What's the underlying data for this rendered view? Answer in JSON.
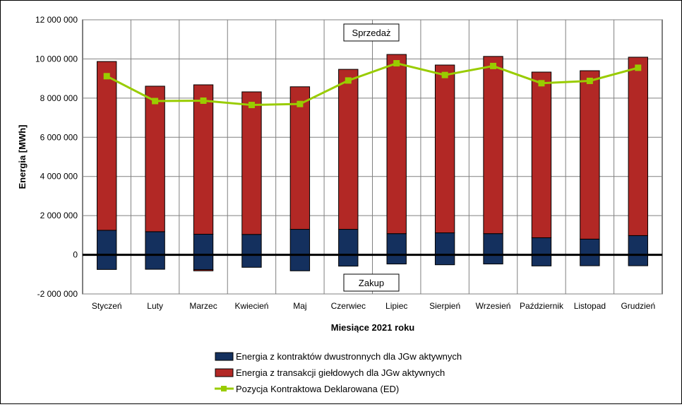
{
  "chart_data": {
    "type": "bar",
    "stacked": true,
    "title": "",
    "xlabel": "Miesiące 2021 roku",
    "ylabel": "Energia [MWh]",
    "ylim": [
      -2000000,
      12000000
    ],
    "yticks": [
      -2000000,
      0,
      2000000,
      4000000,
      6000000,
      8000000,
      10000000,
      12000000
    ],
    "ytick_labels": [
      "-2 000 000",
      "0",
      "2 000 000",
      "4 000 000",
      "6 000 000",
      "8 000 000",
      "10 000 000",
      "12 000 000"
    ],
    "grid": true,
    "legend_position": "bottom",
    "annotations": {
      "top": "Sprzedaż",
      "bottom": "Zakup"
    },
    "categories": [
      "Styczeń",
      "Luty",
      "Marzec",
      "Kwiecień",
      "Maj",
      "Czerwiec",
      "Lipiec",
      "Sierpień",
      "Wrzesień",
      "Październik",
      "Listopad",
      "Grudzień"
    ],
    "series": [
      {
        "name": "Energia z kontraktów dwustronnych dla JGw aktywnych",
        "type": "bar",
        "color": "#14305e",
        "values_sale": [
          1250000,
          1180000,
          1050000,
          1040000,
          1300000,
          1300000,
          1080000,
          1120000,
          1080000,
          870000,
          800000,
          980000
        ],
        "values_purchase": [
          -750000,
          -740000,
          -760000,
          -640000,
          -820000,
          -580000,
          -470000,
          -510000,
          -470000,
          -570000,
          -560000,
          -560000
        ]
      },
      {
        "name": "Energia z transakcji giełdowych dla JGw aktywnych",
        "type": "bar",
        "color": "#b22825",
        "values_sale": [
          8620000,
          7430000,
          7630000,
          7280000,
          7280000,
          8170000,
          9150000,
          8570000,
          9050000,
          8460000,
          8600000,
          9110000
        ],
        "values_purchase": [
          0,
          0,
          -60000,
          0,
          0,
          0,
          0,
          0,
          0,
          0,
          0,
          0
        ]
      },
      {
        "name": "Pozycja Kontraktowa Deklarowana (ED)",
        "type": "line",
        "color": "#99cc00",
        "values": [
          9120000,
          7850000,
          7870000,
          7650000,
          7700000,
          8900000,
          9780000,
          9180000,
          9640000,
          8760000,
          8880000,
          9550000
        ]
      }
    ]
  }
}
